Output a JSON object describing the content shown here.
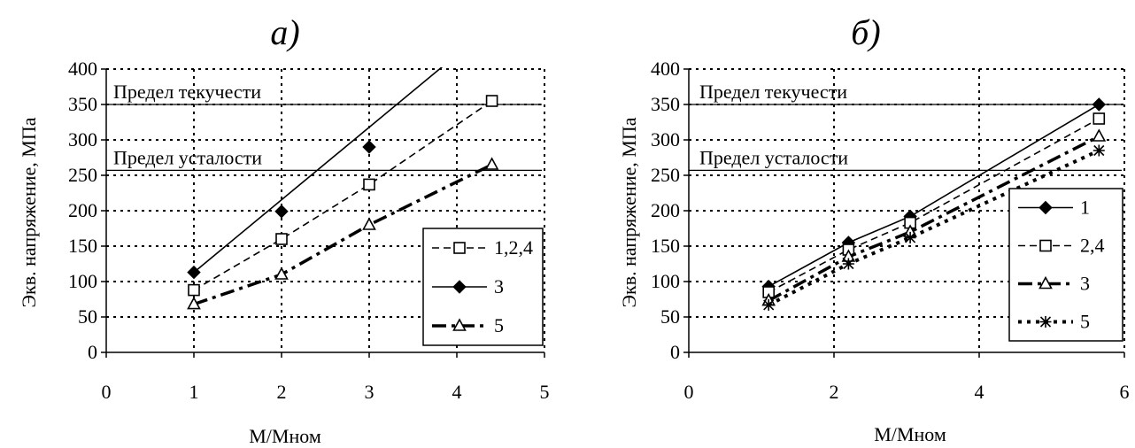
{
  "chart_data": [
    {
      "type": "line",
      "panel_label": "а)",
      "xlabel": "М/Мном",
      "ylabel": "Экв. напряжение, МПа",
      "xlim": [
        0,
        5
      ],
      "ylim": [
        0,
        400
      ],
      "x_ticks": [
        "0",
        "1",
        "2",
        "3",
        "4",
        "5"
      ],
      "y_ticks": [
        "0",
        "50",
        "100",
        "150",
        "200",
        "250",
        "300",
        "350",
        "400"
      ],
      "grid": true,
      "legend_position": "right",
      "reference_lines": [
        {
          "label": "Предел текучести",
          "y": 350
        },
        {
          "label": "Предел усталости",
          "y": 257
        }
      ],
      "series": [
        {
          "name": "1,2,4",
          "marker": "open-square",
          "line": "dashed",
          "x": [
            1,
            2,
            3,
            4.4
          ],
          "y": [
            88,
            160,
            237,
            355
          ]
        },
        {
          "name": "3",
          "marker": "filled-diamond",
          "line": "solid",
          "x": [
            1,
            2,
            3
          ],
          "y": [
            113,
            199,
            290
          ],
          "trend": {
            "x": [
              1,
              3.9
            ],
            "y": [
              113,
              410
            ]
          }
        },
        {
          "name": "5",
          "marker": "open-triangle",
          "line": "dash-dot",
          "x": [
            1,
            2,
            3,
            4.4
          ],
          "y": [
            68,
            110,
            180,
            265
          ]
        }
      ]
    },
    {
      "type": "line",
      "panel_label": "б)",
      "xlabel": "М/Мном",
      "ylabel": "Экв. напряжение, МПа",
      "xlim": [
        0,
        6
      ],
      "ylim": [
        0,
        400
      ],
      "x_ticks": [
        "0",
        "2",
        "4",
        "6"
      ],
      "y_ticks": [
        "0",
        "50",
        "100",
        "150",
        "200",
        "250",
        "300",
        "350",
        "400"
      ],
      "grid": true,
      "legend_position": "right",
      "reference_lines": [
        {
          "label": "Предел текучести",
          "y": 350
        },
        {
          "label": "Предел усталости",
          "y": 257
        }
      ],
      "series": [
        {
          "name": "1",
          "marker": "filled-diamond",
          "line": "solid",
          "x": [
            1.1,
            2.2,
            3.05,
            5.65
          ],
          "y": [
            93,
            155,
            192,
            350
          ]
        },
        {
          "name": "2,4",
          "marker": "open-square",
          "line": "dashed",
          "x": [
            1.1,
            2.2,
            3.05,
            5.65
          ],
          "y": [
            85,
            145,
            183,
            330
          ]
        },
        {
          "name": "3",
          "marker": "open-triangle",
          "line": "dash-dot",
          "x": [
            1.1,
            2.2,
            3.05,
            5.65
          ],
          "y": [
            73,
            135,
            170,
            305
          ]
        },
        {
          "name": "5",
          "marker": "star",
          "line": "dotted",
          "x": [
            1.1,
            2.2,
            3.05,
            5.65
          ],
          "y": [
            67,
            125,
            162,
            285
          ]
        }
      ]
    }
  ],
  "layout_hint": {}
}
